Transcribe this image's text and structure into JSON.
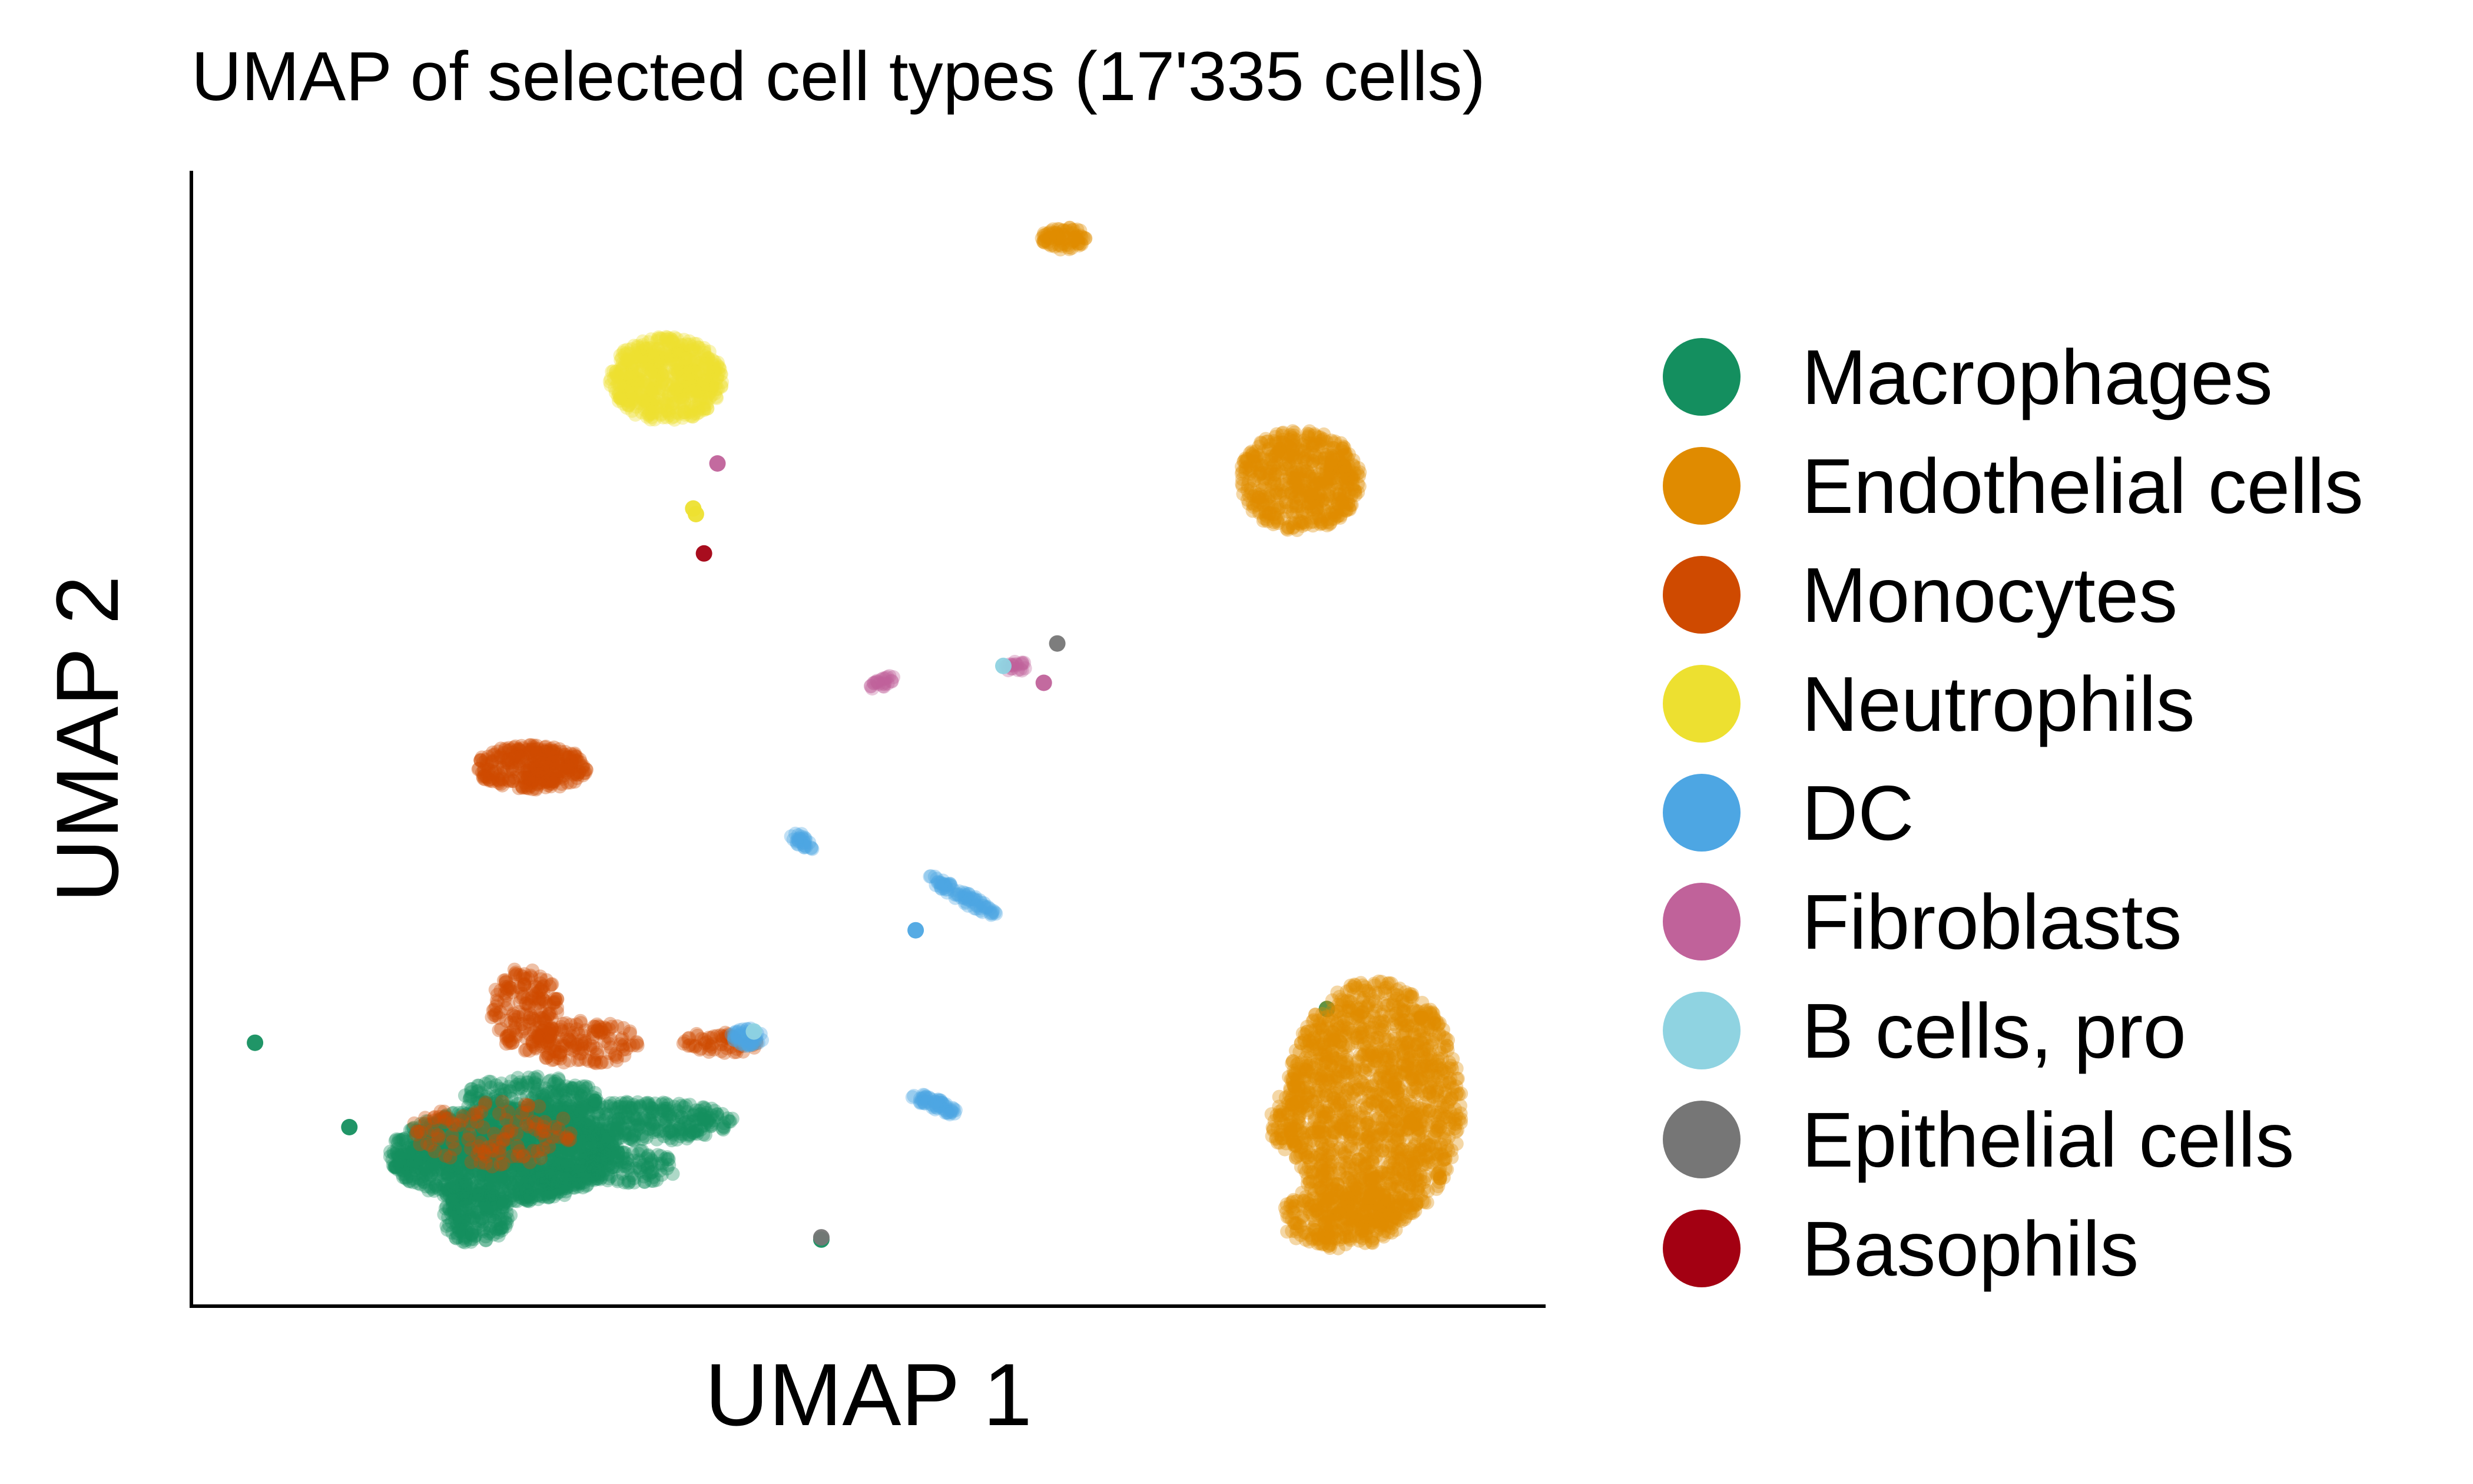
{
  "chart_data": {
    "type": "scatter",
    "title": "UMAP of selected cell types (17'335 cells)",
    "xlabel": "UMAP 1",
    "ylabel": "UMAP 2",
    "xlim": [
      0,
      10
    ],
    "ylim": [
      0,
      10
    ],
    "grid": false,
    "ticks": false,
    "legend_position": "right",
    "total_cells": 17335,
    "series": [
      {
        "name": "Macrophages",
        "color": "#148F5F",
        "clusters": [
          {
            "cx": 2.3,
            "cy": 1.3,
            "rx": 0.85,
            "ry": 0.42,
            "n": 1500
          },
          {
            "cx": 2.1,
            "cy": 0.75,
            "rx": 0.25,
            "ry": 0.25,
            "n": 200
          },
          {
            "cx": 3.3,
            "cy": 1.6,
            "rx": 0.7,
            "ry": 0.18,
            "n": 350
          },
          {
            "cx": 2.5,
            "cy": 1.8,
            "rx": 0.5,
            "ry": 0.2,
            "n": 250
          },
          {
            "cx": 3.2,
            "cy": 1.2,
            "rx": 0.4,
            "ry": 0.15,
            "n": 120
          }
        ],
        "points": [
          [
            0.45,
            2.3
          ],
          [
            1.15,
            1.55
          ],
          [
            4.65,
            0.55
          ],
          [
            8.4,
            2.6
          ]
        ]
      },
      {
        "name": "Endothelial cells",
        "color": "#E08B00",
        "clusters": [
          {
            "cx": 8.75,
            "cy": 1.75,
            "rx": 0.65,
            "ry": 1.1,
            "n": 1600
          },
          {
            "cx": 8.5,
            "cy": 0.75,
            "rx": 0.45,
            "ry": 0.28,
            "n": 300
          },
          {
            "cx": 8.1,
            "cy": 1.6,
            "rx": 0.15,
            "ry": 0.25,
            "n": 60
          },
          {
            "cx": 8.2,
            "cy": 7.3,
            "rx": 0.45,
            "ry": 0.45,
            "n": 600
          },
          {
            "cx": 6.45,
            "cy": 9.45,
            "rx": 0.17,
            "ry": 0.1,
            "n": 80
          }
        ],
        "points": []
      },
      {
        "name": "Monocytes",
        "color": "#CF4A00",
        "clusters": [
          {
            "cx": 2.5,
            "cy": 4.75,
            "rx": 0.42,
            "ry": 0.2,
            "n": 320
          },
          {
            "cx": 2.45,
            "cy": 2.6,
            "rx": 0.25,
            "ry": 0.38,
            "n": 180
          },
          {
            "cx": 2.9,
            "cy": 2.3,
            "rx": 0.4,
            "ry": 0.2,
            "n": 150
          },
          {
            "cx": 2.2,
            "cy": 1.5,
            "rx": 0.6,
            "ry": 0.3,
            "n": 120
          },
          {
            "cx": 3.9,
            "cy": 2.3,
            "rx": 0.28,
            "ry": 0.1,
            "n": 60
          }
        ],
        "points": []
      },
      {
        "name": "Neutrophils",
        "color": "#EDE030",
        "clusters": [
          {
            "cx": 3.5,
            "cy": 8.2,
            "rx": 0.42,
            "ry": 0.38,
            "n": 600
          }
        ],
        "points": [
          [
            3.72,
            7.0
          ],
          [
            3.7,
            7.05
          ]
        ]
      },
      {
        "name": "DC",
        "color": "#4DA6E3",
        "clusters": [
          {
            "cx": 5.7,
            "cy": 3.6,
            "rx": 0.32,
            "ry": 0.05,
            "rot": -35,
            "n": 80
          },
          {
            "cx": 5.5,
            "cy": 1.75,
            "rx": 0.2,
            "ry": 0.05,
            "rot": -25,
            "n": 60
          },
          {
            "cx": 4.5,
            "cy": 4.1,
            "rx": 0.12,
            "ry": 0.05,
            "rot": -40,
            "n": 30
          },
          {
            "cx": 4.1,
            "cy": 2.35,
            "rx": 0.12,
            "ry": 0.08,
            "n": 60
          }
        ],
        "points": [
          [
            5.35,
            3.3
          ]
        ]
      },
      {
        "name": "Fibroblasts",
        "color": "#C0629A",
        "clusters": [
          {
            "cx": 5.1,
            "cy": 5.5,
            "rx": 0.1,
            "ry": 0.04,
            "rot": 30,
            "n": 25
          },
          {
            "cx": 6.1,
            "cy": 5.65,
            "rx": 0.1,
            "ry": 0.05,
            "n": 20
          }
        ],
        "points": [
          [
            6.3,
            5.5
          ],
          [
            3.88,
            7.45
          ]
        ]
      },
      {
        "name": "B cells, pro",
        "color": "#8FD3E1",
        "clusters": [],
        "points": [
          [
            4.15,
            2.4
          ],
          [
            6.0,
            5.65
          ]
        ]
      },
      {
        "name": "Epithelial cells",
        "color": "#767676",
        "clusters": [],
        "points": [
          [
            6.4,
            5.85
          ],
          [
            4.65,
            0.57
          ]
        ]
      },
      {
        "name": "Basophils",
        "color": "#A30012",
        "clusters": [],
        "points": [
          [
            3.78,
            6.65
          ]
        ]
      }
    ]
  }
}
